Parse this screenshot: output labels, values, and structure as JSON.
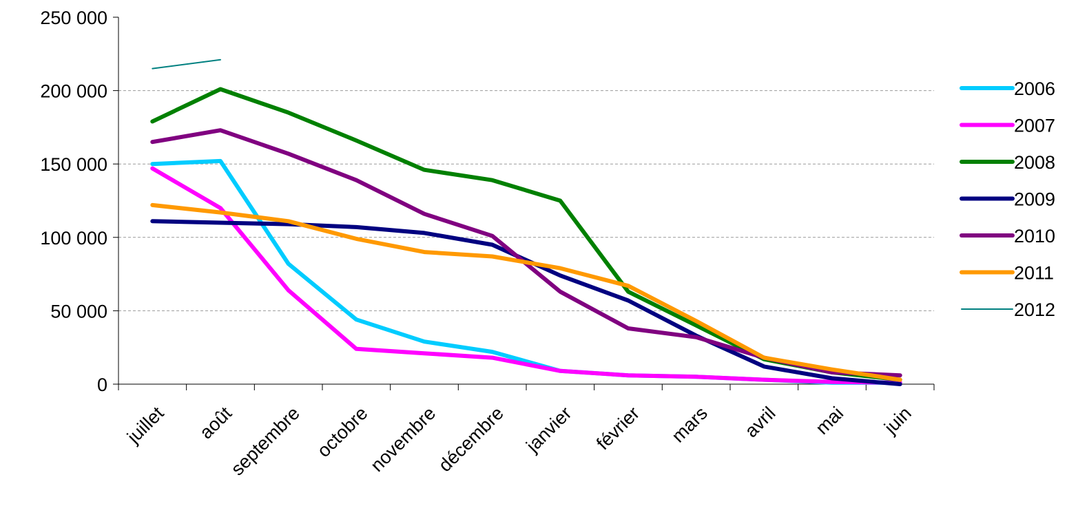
{
  "chart_data": {
    "type": "line",
    "title": "",
    "xlabel": "",
    "ylabel": "",
    "categories": [
      "juillet",
      "août",
      "septembre",
      "octobre",
      "novembre",
      "décembre",
      "janvier",
      "février",
      "mars",
      "avril",
      "mai",
      "juin"
    ],
    "ylim": [
      0,
      250000
    ],
    "yticks": [
      0,
      50000,
      100000,
      150000,
      200000,
      250000
    ],
    "ytick_labels": [
      "0",
      "50 000",
      "100 000",
      "150 000",
      "200 000",
      "250 000"
    ],
    "grid": "horizontal dashed",
    "legend_position": "right",
    "series": [
      {
        "name": "2006",
        "color": "#00ccff",
        "values": [
          150000,
          152000,
          82000,
          44000,
          29000,
          22000,
          9000,
          6000,
          5000,
          3000,
          1000,
          1000
        ]
      },
      {
        "name": "2007",
        "color": "#ff00ff",
        "values": [
          147000,
          120000,
          64000,
          24000,
          21000,
          18000,
          9000,
          6000,
          5000,
          3000,
          1500,
          1000
        ]
      },
      {
        "name": "2008",
        "color": "#008000",
        "values": [
          179000,
          201000,
          185000,
          166000,
          146000,
          139000,
          125000,
          63000,
          40000,
          17000,
          8000,
          3000
        ]
      },
      {
        "name": "2009",
        "color": "#000080",
        "values": [
          111000,
          110000,
          109000,
          107000,
          103000,
          95000,
          74000,
          57000,
          33000,
          12000,
          4000,
          0
        ]
      },
      {
        "name": "2010",
        "color": "#800080",
        "values": [
          165000,
          173000,
          157000,
          139000,
          116000,
          101000,
          63000,
          38000,
          32000,
          18000,
          8000,
          6000
        ]
      },
      {
        "name": "2011",
        "color": "#ff9900",
        "values": [
          122000,
          117000,
          111000,
          99000,
          90000,
          87000,
          79000,
          67000,
          43000,
          18000,
          10000,
          3000
        ]
      },
      {
        "name": "2012",
        "color": "#008080",
        "values": [
          215000,
          221000,
          null,
          null,
          null,
          null,
          null,
          null,
          null,
          null,
          null,
          null
        ]
      }
    ]
  }
}
